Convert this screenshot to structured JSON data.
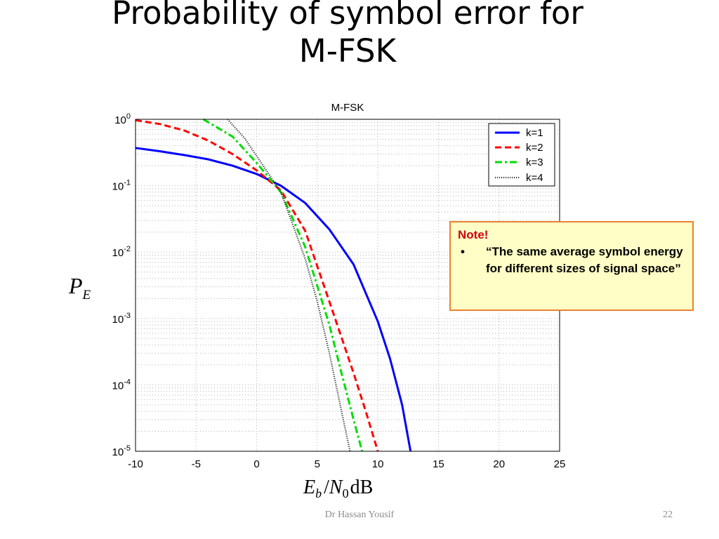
{
  "slide": {
    "title_line1": "Probability of symbol error for",
    "title_line2": "M-FSK",
    "footer_author": "Dr Hassan Yousif",
    "page_number": "22"
  },
  "note": {
    "title": "Note!",
    "bullet": "•",
    "text": "“The same average symbol energy for different sizes of signal space”"
  },
  "chart_data": {
    "type": "line",
    "title": "M-FSK",
    "xlabel": {
      "main": "E",
      "sub1": "b",
      "slash": "/",
      "N": "N",
      "sub2": "0",
      "unit": "dB"
    },
    "ylabel": {
      "main": "P",
      "sub": "E"
    },
    "xlim": [
      -10,
      25
    ],
    "ylim": [
      1e-05,
      1
    ],
    "yscale": "log",
    "grid": true,
    "grid_style": "dotted",
    "legend_position": "top-right",
    "x_ticks": [
      "-10",
      "-5",
      "0",
      "5",
      "10",
      "15",
      "20",
      "25"
    ],
    "x_tick_values": [
      -10,
      -5,
      0,
      5,
      10,
      15,
      20,
      25
    ],
    "y_ticks": [
      {
        "base": "10",
        "exp": "0",
        "value": 1
      },
      {
        "base": "10",
        "exp": "-1",
        "value": 0.1
      },
      {
        "base": "10",
        "exp": "-2",
        "value": 0.01
      },
      {
        "base": "10",
        "exp": "-3",
        "value": 0.001
      },
      {
        "base": "10",
        "exp": "-4",
        "value": 0.0001
      },
      {
        "base": "10",
        "exp": "-5",
        "value": 1e-05
      }
    ],
    "series": [
      {
        "name": "k=1",
        "color": "#0000ff",
        "style": "solid",
        "x": [
          -10,
          -8,
          -6,
          -4,
          -2,
          0,
          2,
          4,
          6,
          8,
          10,
          11,
          12,
          12.7
        ],
        "y": [
          0.37,
          0.33,
          0.29,
          0.25,
          0.2,
          0.15,
          0.1,
          0.055,
          0.022,
          0.0065,
          0.0009,
          0.00025,
          5e-05,
          1e-05
        ]
      },
      {
        "name": "k=2",
        "color": "#ff0000",
        "style": "dashed",
        "x": [
          -10,
          -8,
          -6,
          -4,
          -2,
          0,
          2,
          4,
          6,
          8,
          9,
          10
        ],
        "y": [
          0.97,
          0.85,
          0.68,
          0.48,
          0.3,
          0.17,
          0.085,
          0.021,
          0.0018,
          0.00015,
          4e-05,
          1e-05
        ]
      },
      {
        "name": "k=3",
        "color": "#00dd00",
        "style": "dashdot",
        "x": [
          -4.4,
          -2,
          0,
          2,
          4,
          6,
          7,
          8,
          8.7
        ],
        "y": [
          1,
          0.55,
          0.22,
          0.08,
          0.012,
          0.0008,
          0.00015,
          3e-05,
          1e-05
        ]
      },
      {
        "name": "k=4",
        "color": "#333333",
        "style": "dotted",
        "x": [
          -2.4,
          -1,
          0,
          2,
          4,
          5,
          6,
          7,
          7.7
        ],
        "y": [
          1,
          0.52,
          0.28,
          0.08,
          0.008,
          0.0018,
          0.0003,
          4e-05,
          1e-05
        ]
      }
    ]
  }
}
